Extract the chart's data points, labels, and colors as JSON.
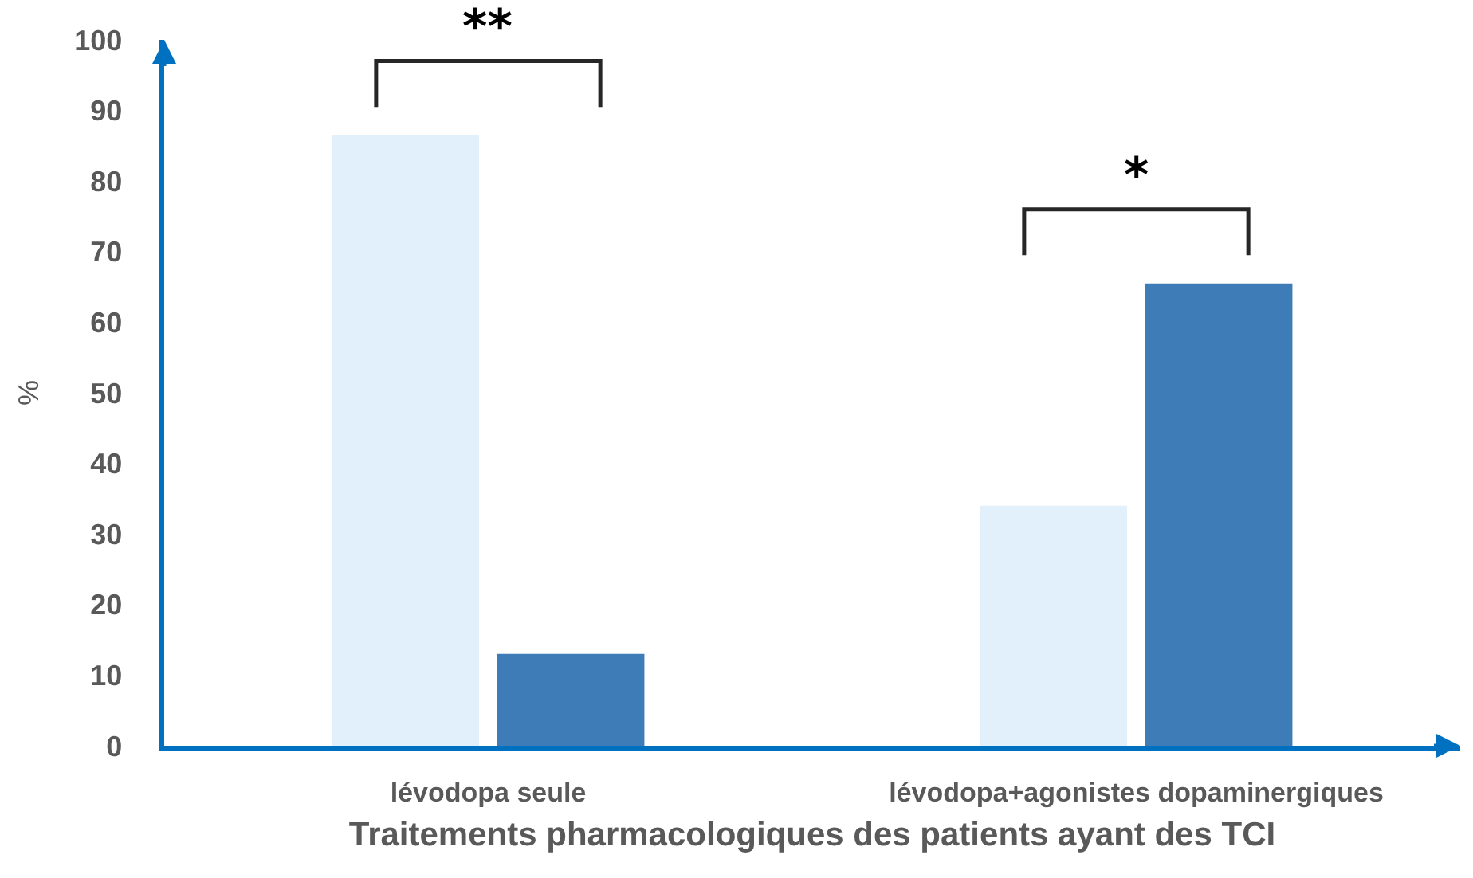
{
  "chart_data": {
    "type": "bar",
    "categories": [
      "lévodopa seule",
      "lévodopa+agonistes dopaminergiques"
    ],
    "series": [
      {
        "color": "#e2f0fc",
        "values": [
          86.5,
          34
        ]
      },
      {
        "color": "#3e7cb8",
        "values": [
          13,
          65.5
        ]
      }
    ],
    "ylim": [
      0,
      100
    ],
    "yticks": [
      0,
      10,
      20,
      30,
      40,
      50,
      60,
      70,
      80,
      90,
      100
    ],
    "ylabel": "%",
    "xlabel": "Traitements pharmacologiques des patients ayant des TCI",
    "annotations": [
      "**",
      "*"
    ]
  }
}
